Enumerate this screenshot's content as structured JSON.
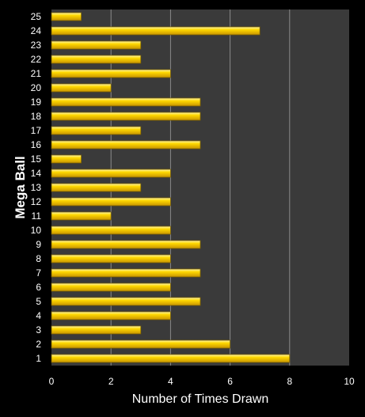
{
  "chart_data": {
    "type": "bar",
    "orientation": "horizontal",
    "title": "",
    "xlabel": "Number of Times Drawn",
    "ylabel": "Mega Ball",
    "xlim": [
      0,
      10
    ],
    "xticks": [
      0,
      2,
      4,
      6,
      8,
      10
    ],
    "grid": true,
    "legend": "none",
    "categories": [
      "1",
      "2",
      "3",
      "4",
      "5",
      "6",
      "7",
      "8",
      "9",
      "10",
      "11",
      "12",
      "13",
      "14",
      "15",
      "16",
      "17",
      "18",
      "19",
      "20",
      "21",
      "22",
      "23",
      "24",
      "25"
    ],
    "values": [
      8,
      6,
      3,
      4,
      5,
      4,
      5,
      4,
      5,
      4,
      2,
      4,
      3,
      4,
      1,
      5,
      3,
      5,
      5,
      2,
      4,
      3,
      3,
      7,
      1
    ],
    "colors": {
      "background": "#000000",
      "plot_area": "#3a3a3a",
      "gridline": "#8a8a8a",
      "bar_fill": "#ffd200",
      "bar_highlight": "#fff4a0",
      "bar_edge": "#7a6000",
      "text": "#ffffff"
    }
  }
}
